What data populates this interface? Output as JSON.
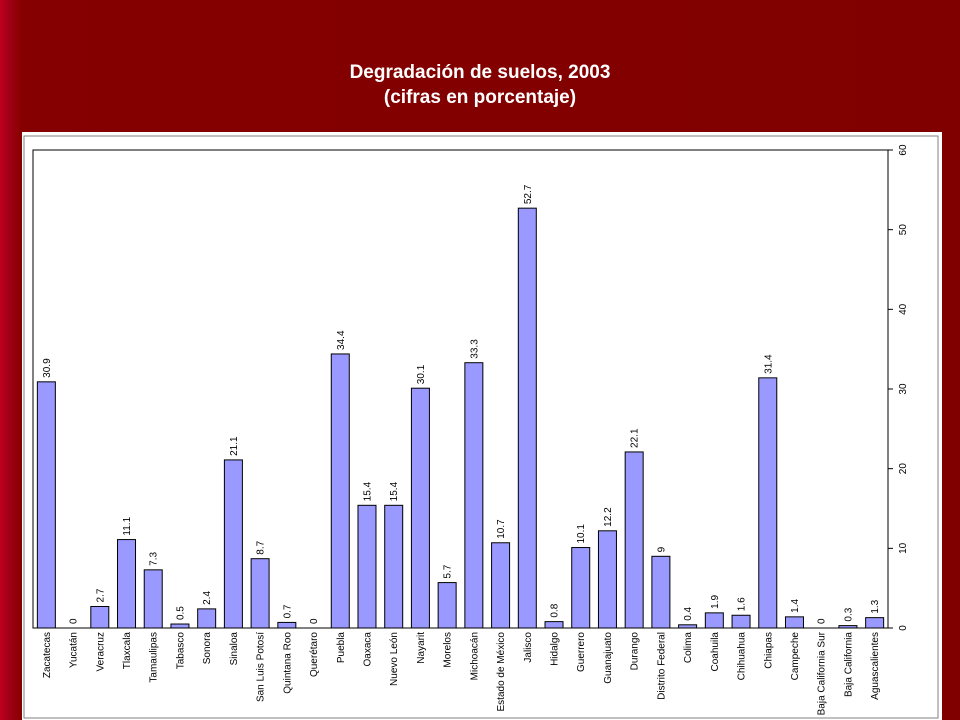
{
  "slide": {
    "title": "Degradación de suelos, 2003",
    "subtitle": "(cifras en porcentaje)"
  },
  "colors": {
    "background": "#800000",
    "bar_fill": "#9999ff",
    "bar_stroke": "#000000"
  },
  "chart_data": {
    "type": "bar",
    "title": "Degradación de suelos, 2003",
    "subtitle": "(cifras en porcentaje)",
    "categories": [
      "Zacatecas",
      "Yucatán",
      "Veracruz",
      "Tlaxcala",
      "Tamaulipas",
      "Tabasco",
      "Sonora",
      "Sinaloa",
      "San Luis Potosí",
      "Quintana Roo",
      "Querétaro",
      "Puebla",
      "Oaxaca",
      "Nuevo León",
      "Nayarit",
      "Morelos",
      "Michoacán",
      "Estado de México",
      "Jalisco",
      "Hidalgo",
      "Guerrero",
      "Guanajuato",
      "Durango",
      "Distrito Federal",
      "Colima",
      "Coahuila",
      "Chihuahua",
      "Chiapas",
      "Campeche",
      "Baja California Sur",
      "Baja California",
      "Aguascalientes"
    ],
    "values": [
      30.9,
      0,
      2.7,
      11.1,
      7.3,
      0.5,
      2.4,
      21.1,
      8.7,
      0.7,
      0,
      34.4,
      15.4,
      15.4,
      30.1,
      5.7,
      33.3,
      10.7,
      52.7,
      0.8,
      10.1,
      12.2,
      22.1,
      9,
      0.4,
      1.9,
      1.6,
      31.4,
      1.4,
      0,
      0.3,
      1.3
    ],
    "value_labels": [
      "30.9",
      "0",
      "2.7",
      "11.1",
      "7.3",
      "0.5",
      "2.4",
      "21.1",
      "8.7",
      "0.7",
      "0",
      "34.4",
      "15.4",
      "15.4",
      "30.1",
      "5.7",
      "33.3",
      "10.7",
      "52.7",
      "0.8",
      "10.1",
      "12.2",
      "22.1",
      "9",
      "0.4",
      "1.9",
      "1.6",
      "31.4",
      "1.4",
      "0",
      "0.3",
      "1.3"
    ],
    "y_ticks": [
      "0",
      "10",
      "20",
      "30",
      "40",
      "50",
      "60"
    ],
    "ylim": [
      0,
      60
    ],
    "y_axis_side": "right",
    "label_orientation": "rotated-90",
    "grid": false,
    "legend": "none"
  }
}
